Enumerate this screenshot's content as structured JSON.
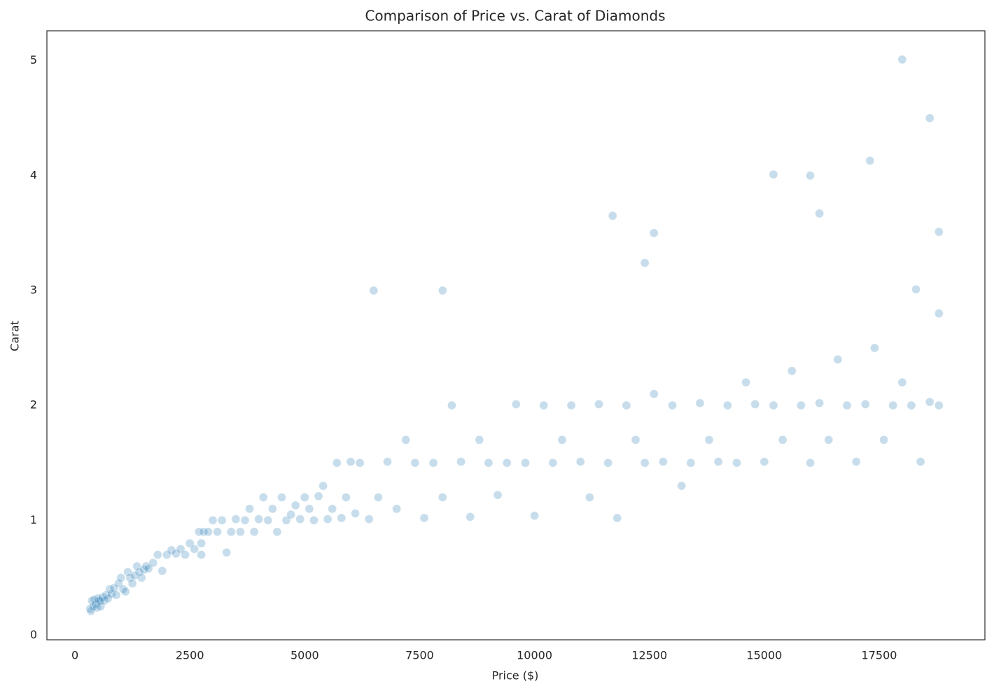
{
  "chart_data": {
    "type": "scatter",
    "title": "Comparison of Price vs. Carat of Diamonds",
    "x_label": "Price ($)",
    "y_label": "Carat",
    "color": "#1f77b4",
    "grid": false,
    "xlim": [
      -610,
      19800
    ],
    "ylim": [
      -0.04,
      5.26
    ],
    "xticks": [
      0,
      2500,
      5000,
      7500,
      10000,
      12500,
      15000,
      17500
    ],
    "yticks": [
      0,
      1,
      2,
      3,
      4,
      5
    ],
    "x": [
      330,
      350,
      370,
      400,
      420,
      450,
      480,
      500,
      520,
      550,
      560,
      600,
      640,
      680,
      720,
      760,
      800,
      850,
      900,
      950,
      1000,
      1050,
      1100,
      1150,
      1200,
      1250,
      1300,
      1350,
      1400,
      1450,
      1500,
      1550,
      1600,
      1700,
      1800,
      1900,
      2000,
      2100,
      2200,
      2300,
      2400,
      2500,
      2600,
      2700,
      2750,
      2750,
      2800,
      2900,
      3000,
      3100,
      3200,
      3300,
      3400,
      3500,
      3600,
      3700,
      3800,
      3900,
      4000,
      4100,
      4200,
      4300,
      4400,
      4500,
      4600,
      4700,
      4800,
      4900,
      5000,
      5100,
      5200,
      5300,
      5400,
      5500,
      5600,
      5700,
      5800,
      5900,
      6000,
      6100,
      6200,
      6400,
      6600,
      6800,
      7000,
      7200,
      7400,
      7600,
      7800,
      8000,
      8200,
      8400,
      8600,
      8800,
      9000,
      9200,
      9400,
      9600,
      9800,
      10000,
      10200,
      10400,
      10600,
      10800,
      11000,
      11200,
      11400,
      11600,
      11800,
      12000,
      12200,
      12400,
      12600,
      12800,
      13000,
      13200,
      13400,
      13600,
      13800,
      14000,
      14200,
      14400,
      14600,
      14800,
      15000,
      15200,
      15400,
      15600,
      15800,
      16000,
      16200,
      16400,
      16600,
      16800,
      17000,
      17200,
      17400,
      17600,
      17800,
      18000,
      18200,
      18400,
      18600,
      18800,
      18800,
      18000,
      18600,
      15200,
      16000,
      17300,
      11700,
      16200,
      12600,
      18800,
      12400,
      18300,
      8000,
      6500
    ],
    "y": [
      0.23,
      0.21,
      0.3,
      0.25,
      0.31,
      0.27,
      0.24,
      0.32,
      0.3,
      0.3,
      0.25,
      0.33,
      0.3,
      0.35,
      0.32,
      0.4,
      0.36,
      0.41,
      0.35,
      0.45,
      0.5,
      0.4,
      0.38,
      0.55,
      0.5,
      0.45,
      0.52,
      0.6,
      0.55,
      0.5,
      0.57,
      0.6,
      0.58,
      0.63,
      0.7,
      0.56,
      0.7,
      0.74,
      0.71,
      0.75,
      0.7,
      0.8,
      0.75,
      0.9,
      0.7,
      0.8,
      0.9,
      0.9,
      1.0,
      0.9,
      1.0,
      0.72,
      0.9,
      1.01,
      0.9,
      1.0,
      1.1,
      0.9,
      1.01,
      1.2,
      1.0,
      1.1,
      0.9,
      1.2,
      1.0,
      1.05,
      1.13,
      1.01,
      1.2,
      1.1,
      1.0,
      1.21,
      1.3,
      1.01,
      1.1,
      1.5,
      1.02,
      1.2,
      1.51,
      1.06,
      1.5,
      1.01,
      1.2,
      1.51,
      1.1,
      1.7,
      1.5,
      1.02,
      1.5,
      1.2,
      2.0,
      1.51,
      1.03,
      1.7,
      1.5,
      1.22,
      1.5,
      2.01,
      1.5,
      1.04,
      2.0,
      1.5,
      1.7,
      2.0,
      1.51,
      1.2,
      2.01,
      1.5,
      1.02,
      2.0,
      1.7,
      1.5,
      2.1,
      1.51,
      2.0,
      1.3,
      1.5,
      2.02,
      1.7,
      1.51,
      2.0,
      1.5,
      2.2,
      2.01,
      1.51,
      2.0,
      1.7,
      2.3,
      2.0,
      1.5,
      2.02,
      1.7,
      2.4,
      2.0,
      1.51,
      2.01,
      2.5,
      1.7,
      2.0,
      2.2,
      2.0,
      1.51,
      2.03,
      2.0,
      2.8,
      5.01,
      4.5,
      4.01,
      4.0,
      4.13,
      3.65,
      3.67,
      3.5,
      3.51,
      3.24,
      3.01,
      3.0,
      3.0
    ]
  }
}
